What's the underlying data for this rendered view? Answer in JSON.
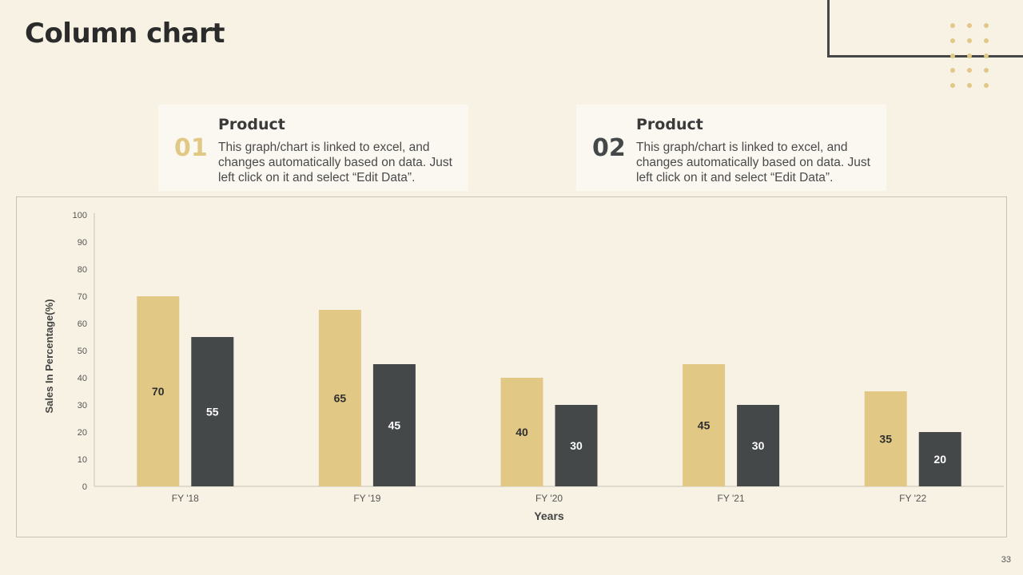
{
  "page": {
    "title": "Column chart",
    "slide_number": "33"
  },
  "colors": {
    "gold": "#e1c985",
    "dark": "#454849",
    "background": "#f8f2e4",
    "card": "#fbf8f1"
  },
  "cards": [
    {
      "number": "01",
      "title": "Product",
      "description": "This graph/chart is linked to excel, and changes automatically based on data. Just left click on it and select “Edit Data”."
    },
    {
      "number": "02",
      "title": "Product",
      "description": "This graph/chart is linked to excel, and changes automatically based on data. Just left click on it and select “Edit Data”."
    }
  ],
  "chart_data": {
    "type": "bar",
    "categories": [
      "FY '18",
      "FY '19",
      "FY '20",
      "FY '21",
      "FY '22"
    ],
    "series": [
      {
        "values": [
          70,
          65,
          40,
          45,
          35
        ],
        "color": "#e1c985"
      },
      {
        "values": [
          55,
          45,
          30,
          30,
          20
        ],
        "color": "#454849"
      }
    ],
    "xlabel": "Years",
    "ylabel": "Sales In Percentage(%)",
    "ylim": [
      0,
      100
    ],
    "yticks": [
      0,
      10,
      20,
      30,
      40,
      50,
      60,
      70,
      80,
      90,
      100
    ],
    "data_labels": true,
    "grid": false,
    "legend": "none"
  }
}
